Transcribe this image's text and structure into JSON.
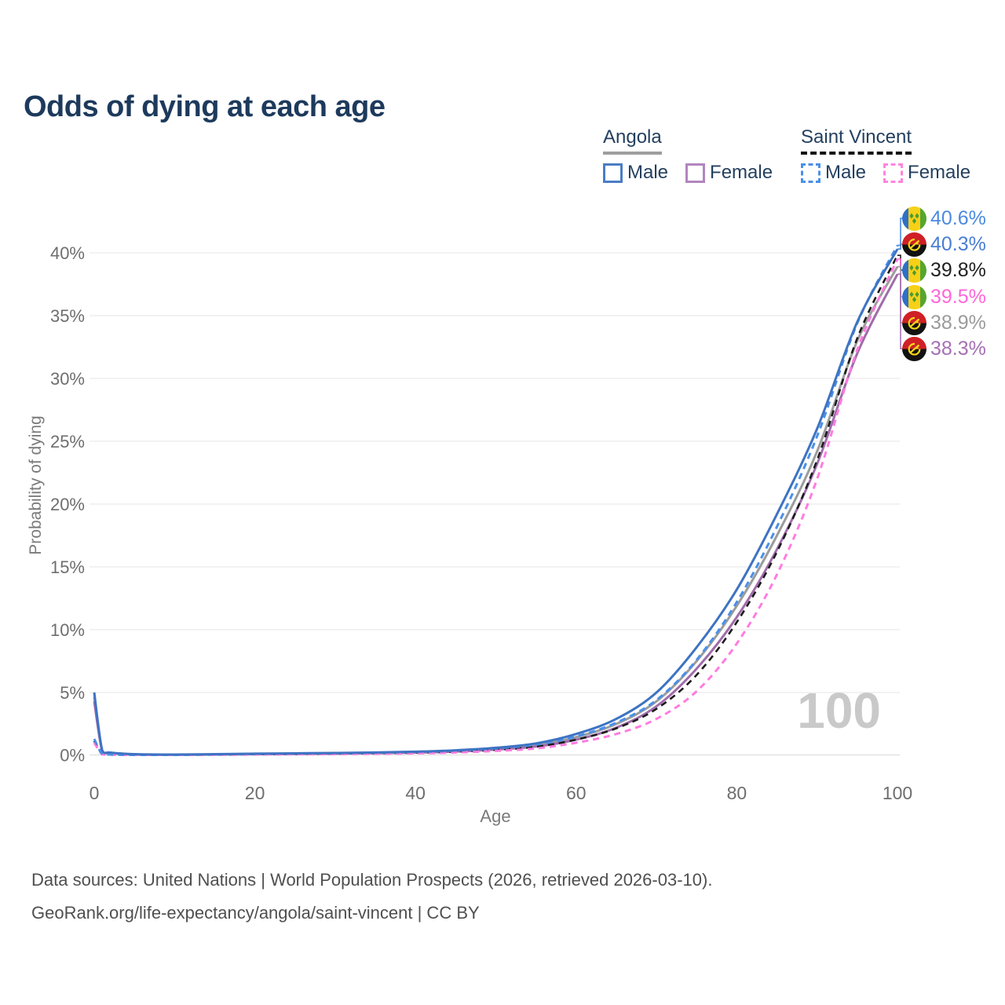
{
  "header": {
    "title": "Odds of dying at each age"
  },
  "legend": {
    "groups": [
      {
        "label": "Angola",
        "line_style": "solid",
        "underline_color": "#9e9e9e",
        "items": [
          {
            "label": "Male",
            "color": "#4a7dc4",
            "dashed": false
          },
          {
            "label": "Female",
            "color": "#b285bf",
            "dashed": false
          }
        ]
      },
      {
        "label": "Saint Vincent",
        "line_style": "dashed",
        "underline_color": "#151515",
        "items": [
          {
            "label": "Male",
            "color": "#4a90e8",
            "dashed": true
          },
          {
            "label": "Female",
            "color": "#ff85e0",
            "dashed": true
          }
        ]
      }
    ]
  },
  "chart_data": {
    "type": "line",
    "title": "Odds of dying at each age",
    "xlabel": "Age",
    "ylabel": "Probability of dying",
    "xlim": [
      0,
      100
    ],
    "ylim_percent": [
      0,
      42
    ],
    "grid": "horizontal-only",
    "x_ticks": [
      0,
      20,
      40,
      60,
      80,
      100
    ],
    "x_tick_labels": [
      "0",
      "20",
      "40",
      "60",
      "80",
      "100"
    ],
    "y_ticks_percent": [
      0,
      5,
      10,
      15,
      20,
      25,
      30,
      35,
      40
    ],
    "y_tick_labels": [
      "0%",
      "5%",
      "10%",
      "15%",
      "20%",
      "25%",
      "30%",
      "35%",
      "40%"
    ],
    "ages": [
      0,
      1,
      2,
      5,
      10,
      15,
      20,
      25,
      30,
      35,
      40,
      45,
      50,
      55,
      60,
      65,
      70,
      75,
      80,
      85,
      90,
      95,
      100
    ],
    "series": [
      {
        "name": "Angola Both sexes",
        "country": "Angola",
        "sex": "both",
        "color": "#9c9c9c",
        "dashed": false,
        "width": 3,
        "values_percent": [
          4.65,
          0.35,
          0.2,
          0.08,
          0.05,
          0.08,
          0.11,
          0.13,
          0.16,
          0.2,
          0.25,
          0.35,
          0.52,
          0.8,
          1.45,
          2.5,
          4.3,
          7.5,
          11.9,
          17.5,
          24.2,
          33.0,
          38.9
        ]
      },
      {
        "name": "Angola Female",
        "country": "Angola",
        "sex": "female",
        "color": "#a06cab",
        "dashed": false,
        "width": 3,
        "values_percent": [
          4.3,
          0.32,
          0.18,
          0.07,
          0.05,
          0.06,
          0.09,
          0.11,
          0.13,
          0.17,
          0.22,
          0.3,
          0.46,
          0.7,
          1.25,
          2.2,
          3.9,
          6.9,
          11.0,
          16.4,
          23.2,
          32.0,
          38.3
        ]
      },
      {
        "name": "Saint Vincent Both sexes",
        "country": "Saint Vincent",
        "sex": "both",
        "color": "#1c1c1c",
        "dashed": true,
        "width": 2.6,
        "values_percent": [
          1.15,
          0.09,
          0.05,
          0.03,
          0.03,
          0.05,
          0.08,
          0.1,
          0.13,
          0.16,
          0.21,
          0.29,
          0.44,
          0.68,
          1.25,
          2.15,
          3.7,
          6.4,
          10.6,
          16.2,
          23.5,
          33.2,
          39.8
        ]
      },
      {
        "name": "Saint Vincent Female",
        "country": "Saint Vincent",
        "sex": "female",
        "color": "#ff7ce0",
        "dashed": true,
        "width": 3,
        "values_percent": [
          1.0,
          0.08,
          0.05,
          0.02,
          0.02,
          0.04,
          0.06,
          0.08,
          0.1,
          0.12,
          0.16,
          0.23,
          0.35,
          0.55,
          1.0,
          1.7,
          2.9,
          5.1,
          8.9,
          14.4,
          22.0,
          32.3,
          39.5
        ]
      },
      {
        "name": "Saint Vincent Male",
        "country": "Saint Vincent",
        "sex": "male",
        "color": "#4a90e8",
        "dashed": true,
        "width": 3,
        "values_percent": [
          1.3,
          0.1,
          0.06,
          0.03,
          0.03,
          0.07,
          0.11,
          0.14,
          0.17,
          0.21,
          0.27,
          0.37,
          0.55,
          0.85,
          1.5,
          2.6,
          4.4,
          7.6,
          12.2,
          18.2,
          25.4,
          34.4,
          40.6
        ]
      },
      {
        "name": "Angola Male",
        "country": "Angola",
        "sex": "male",
        "color": "#3e73c3",
        "dashed": false,
        "width": 3,
        "values_percent": [
          5.0,
          0.38,
          0.22,
          0.09,
          0.06,
          0.09,
          0.13,
          0.16,
          0.19,
          0.23,
          0.29,
          0.4,
          0.6,
          0.95,
          1.7,
          2.9,
          5.0,
          8.6,
          13.2,
          19.2,
          26.0,
          34.5,
          40.3
        ]
      }
    ],
    "legend_position": "top-right",
    "watermark": "100"
  },
  "end_labels": [
    {
      "flag": "saint-vincent",
      "series": "Saint Vincent Male",
      "value": "40.6%",
      "value_pct": 40.6,
      "color": "#4a8ae0"
    },
    {
      "flag": "angola",
      "series": "Angola Male",
      "value": "40.3%",
      "value_pct": 40.3,
      "color": "#4a7ed4"
    },
    {
      "flag": "saint-vincent",
      "series": "Saint Vincent Both sexes",
      "value": "39.8%",
      "value_pct": 39.8,
      "color": "#1f1f1f"
    },
    {
      "flag": "saint-vincent",
      "series": "Saint Vincent Female",
      "value": "39.5%",
      "value_pct": 39.5,
      "color": "#ff66d9"
    },
    {
      "flag": "angola",
      "series": "Angola Both sexes",
      "value": "38.9%",
      "value_pct": 38.9,
      "color": "#9b9b9b"
    },
    {
      "flag": "angola",
      "series": "Angola Female",
      "value": "38.3%",
      "value_pct": 38.3,
      "color": "#a66fb5"
    }
  ],
  "axes": {
    "x_label": "Age",
    "y_label": "Probability of dying"
  },
  "watermark": "100",
  "footer": {
    "line1": "Data sources: United Nations | World Population Prospects (2026, retrieved 2026-03-10).",
    "line2": "GeoRank.org/life-expectancy/angola/saint-vincent | CC BY"
  }
}
